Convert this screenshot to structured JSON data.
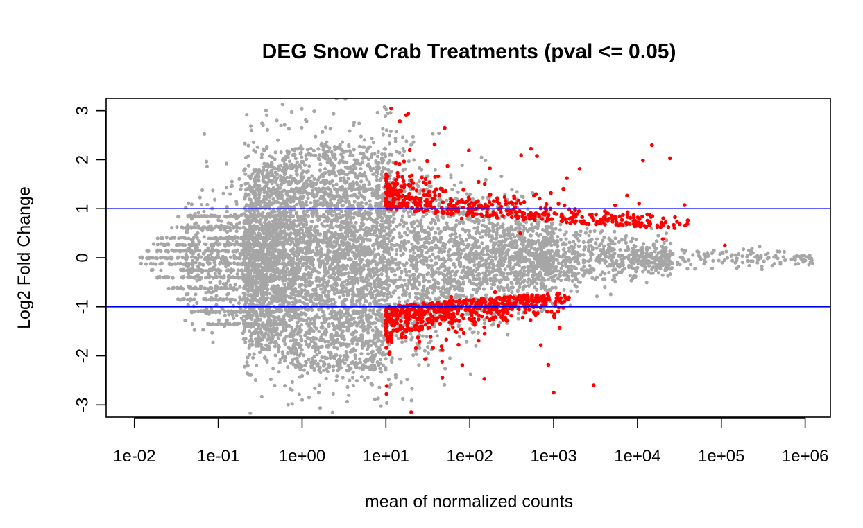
{
  "chart_data": {
    "type": "scatter",
    "title": "DEG Snow Crab Treatments  (pval <= 0.05)",
    "xlabel": "mean of normalized counts",
    "ylabel": "Log2 Fold Change",
    "x_scale": "log10",
    "xlim": [
      0.0046,
      2000000.0
    ],
    "ylim": [
      -3.25,
      3.25
    ],
    "x_ticks": [
      "1e-02",
      "1e-01",
      "1e+00",
      "1e+01",
      "1e+02",
      "1e+03",
      "1e+04",
      "1e+05",
      "1e+06"
    ],
    "y_ticks": [
      "-3",
      "-2",
      "-1",
      "0",
      "1",
      "2",
      "3"
    ],
    "hlines": [
      1,
      -1
    ],
    "grid": false,
    "legend": "none",
    "colors": {
      "not_significant": "#a6a6a6",
      "significant": "#ff0000",
      "hline": "#0000ff"
    },
    "series": [
      {
        "significance": "p > 0.05",
        "color": "#a6a6a6",
        "sample_points": [
          {
            "x": 0.012,
            "y": -0.12
          },
          {
            "x": 0.02,
            "y": -0.4
          },
          {
            "x": 0.05,
            "y": 0.25
          },
          {
            "x": 0.5,
            "y": 2.8
          },
          {
            "x": 1.0,
            "y": -2.9
          },
          {
            "x": 3.0,
            "y": 0.05
          },
          {
            "x": 20,
            "y": 2.3
          },
          {
            "x": 100,
            "y": 0.1
          },
          {
            "x": 1000,
            "y": 0.5
          },
          {
            "x": 10000,
            "y": -0.2
          },
          {
            "x": 100000,
            "y": 0.1
          },
          {
            "x": 1200000,
            "y": -0.05
          }
        ]
      },
      {
        "significance": "p <= 0.05",
        "color": "#ff0000",
        "sample_points": [
          {
            "x": 10,
            "y": 1.2
          },
          {
            "x": 30,
            "y": 1.5
          },
          {
            "x": 80,
            "y": 0.8
          },
          {
            "x": 400,
            "y": 0.5
          },
          {
            "x": 20000,
            "y": 0.38
          },
          {
            "x": 110000,
            "y": 0.25
          },
          {
            "x": 15,
            "y": -1.1
          },
          {
            "x": 60,
            "y": -0.8
          },
          {
            "x": 200,
            "y": -0.7
          },
          {
            "x": 1000,
            "y": -2.75
          },
          {
            "x": 3000,
            "y": -2.6
          },
          {
            "x": 20,
            "y": -3.15
          }
        ]
      }
    ]
  }
}
